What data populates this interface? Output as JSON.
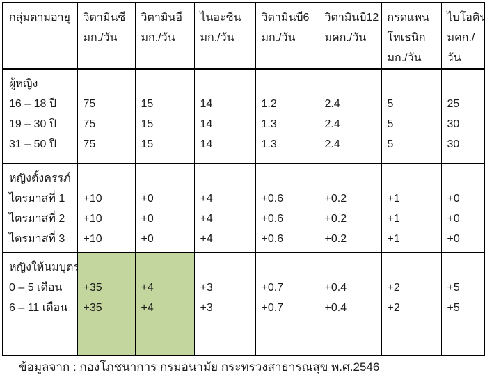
{
  "colors": {
    "highlight_green": "#c3d69d",
    "border": "#000000",
    "text": "#1b1b1b"
  },
  "table": {
    "columns": [
      {
        "lines": [
          "กลุ่มตามอายุ"
        ]
      },
      {
        "lines": [
          "วิตามินซี",
          "มก./วัน"
        ]
      },
      {
        "lines": [
          "วิตามินอี",
          "มก./วัน"
        ]
      },
      {
        "lines": [
          "ไนอะซีน",
          "มก./วัน"
        ]
      },
      {
        "lines": [
          "วิตามินบี6",
          "มก./วัน"
        ]
      },
      {
        "lines": [
          "วิตามินบี12",
          "มคก./วัน"
        ]
      },
      {
        "lines": [
          "กรดแพน",
          "โทเธนิก",
          "มก./วัน"
        ]
      },
      {
        "lines": [
          "ไบโอติน",
          "มคก./",
          "วัน"
        ]
      }
    ],
    "sections": [
      {
        "section_label": "ผู้หญิง",
        "rows": [
          {
            "label": "16 – 18 ปี",
            "values": [
              "75",
              "15",
              "14",
              "1.2",
              "2.4",
              "5",
              "25"
            ]
          },
          {
            "label": "19 – 30 ปี",
            "values": [
              "75",
              "15",
              "14",
              "1.3",
              "2.4",
              "5",
              "30"
            ]
          },
          {
            "label": "31 – 50 ปี",
            "values": [
              "75",
              "15",
              "14",
              "1.3",
              "2.4",
              "5",
              "30"
            ]
          }
        ]
      },
      {
        "section_label": "หญิงตั้งครรภ์",
        "rows": [
          {
            "label": "ไตรมาสที่ 1",
            "values": [
              "+10",
              "+0",
              "+4",
              "+0.6",
              "+0.2",
              "+1",
              "+0"
            ]
          },
          {
            "label": "ไตรมาสที่ 2",
            "values": [
              "+10",
              "+0",
              "+4",
              "+0.6",
              "+0.2",
              "+1",
              "+0"
            ]
          },
          {
            "label": "ไตรมาสที่ 3",
            "values": [
              "+10",
              "+0",
              "+4",
              "+0.6",
              "+0.2",
              "+1",
              "+0"
            ]
          }
        ]
      },
      {
        "section_label": "หญิงให้นมบุตร",
        "highlighted_columns": [
          "วิตามินซี",
          "วิตามินอี"
        ],
        "rows": [
          {
            "label": "0 – 5 เดือน",
            "values": [
              "+35",
              "+4",
              "+3",
              "+0.7",
              "+0.4",
              "+2",
              "+5"
            ]
          },
          {
            "label": "6 – 11 เดือน",
            "values": [
              "+35",
              "+4",
              "+3",
              "+0.7",
              "+0.4",
              "+2",
              "+5"
            ]
          }
        ]
      }
    ]
  },
  "footer": {
    "source_note": "ข้อมูลจาก : กองโภชนาการ กรมอนามัย กระทรวงสาธารณสุข พ.ศ.2546"
  }
}
